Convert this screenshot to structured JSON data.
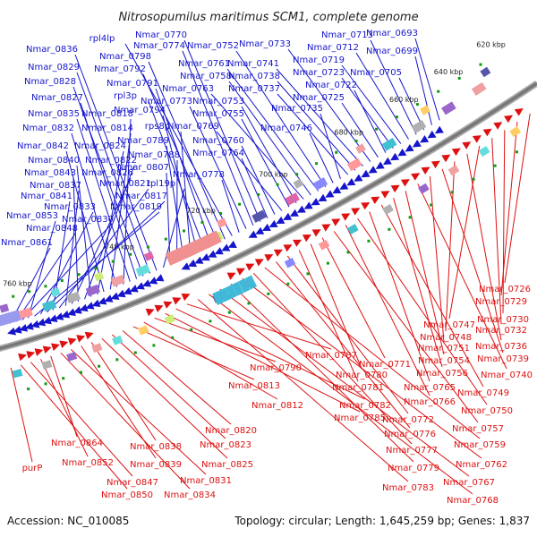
{
  "header": {
    "title": "Nitrosopumilus maritimus SCM1, complete genome"
  },
  "footer": {
    "accession": "Accession: NC_010085",
    "summary": "Topology: circular; Length: 1,645,259 bp; Genes: 1,837"
  },
  "colors": {
    "forward": "#1515cc",
    "reverse": "#dd1111",
    "backbone": "#777777"
  },
  "kbp_ticks": [
    "620 kbp",
    "640 kbp",
    "660 kbp",
    "680 kbp",
    "700 kbp",
    "720 kbp",
    "740 kbp",
    "760 kbp"
  ],
  "forward_labels": [
    "Nmar_0693",
    "Nmar_0699",
    "Nmar_0705",
    "Nmar_0713",
    "Nmar_0712",
    "Nmar_0719",
    "Nmar_0723",
    "Nmar_0722",
    "Nmar_0725",
    "Nmar_0733",
    "Nmar_0741",
    "Nmar_0738",
    "Nmar_0737",
    "Nmar_0735",
    "Nmar_0746",
    "Nmar_0752",
    "Nmar_0761",
    "Nmar_0758",
    "Nmar_0763",
    "Nmar_0753",
    "Nmar_0755",
    "Nmar_0769",
    "Nmar_0760",
    "Nmar_0764",
    "Nmar_0770",
    "Nmar_0774",
    "Nmar_0773",
    "Nmar_0778",
    "rpl4lp",
    "Nmar_0798",
    "Nmar_0792",
    "Nmar_0791",
    "rpl3p",
    "Nmar_0794",
    "rps8p",
    "Nmar_0789",
    "Nmar_0788",
    "Nmar_0807",
    "rpl19p",
    "Nmar_0836",
    "Nmar_0829",
    "Nmar_0828",
    "Nmar_0827",
    "Nmar_0835",
    "Nmar_0818",
    "Nmar_0832",
    "Nmar_0814",
    "Nmar_0842",
    "Nmar_0824",
    "Nmar_0840",
    "Nmar_0822",
    "Nmar_0843",
    "Nmar_0826",
    "Nmar_0837",
    "Nmar_0821",
    "Nmar_0841",
    "Nmar_0817",
    "Nmar_0833",
    "Nmar_0819",
    "Nmar_0853",
    "Nmar_0830",
    "Nmar_0848",
    "Nmar_0861"
  ],
  "reverse_labels": [
    "Nmar_0726",
    "Nmar_0729",
    "Nmar_0730",
    "Nmar_0732",
    "Nmar_0747",
    "Nmar_0736",
    "Nmar_0748",
    "Nmar_0739",
    "Nmar_0751",
    "Nmar_0740",
    "Nmar_0754",
    "Nmar_0756",
    "Nmar_0749",
    "Nmar_0765",
    "Nmar_0750",
    "Nmar_0766",
    "Nmar_0757",
    "Nmar_0771",
    "Nmar_0780",
    "Nmar_0781",
    "Nmar_0772",
    "Nmar_0776",
    "Nmar_0759",
    "Nmar_0777",
    "Nmar_0762",
    "Nmar_0779",
    "Nmar_0767",
    "Nmar_0768",
    "Nmar_0783",
    "Nmar_0787",
    "Nmar_0782",
    "Nmar_0785",
    "Nmar_0790",
    "Nmar_0812",
    "Nmar_0813",
    "Nmar_0820",
    "Nmar_0823",
    "Nmar_0825",
    "Nmar_0838",
    "Nmar_0839",
    "Nmar_0831",
    "Nmar_0834",
    "Nmar_0864",
    "Nmar_0852",
    "Nmar_0847",
    "Nmar_0850",
    "purP"
  ]
}
